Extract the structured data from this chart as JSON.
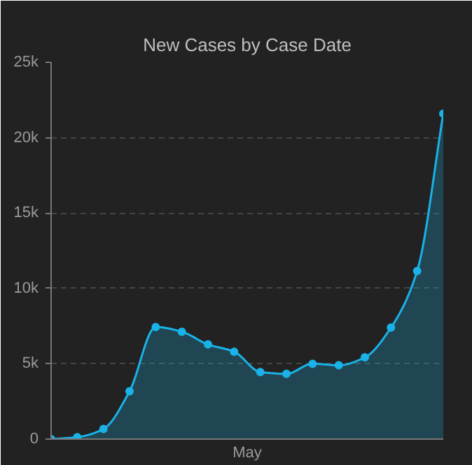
{
  "chart_data": {
    "type": "area",
    "title": "New Cases by Case Date",
    "xlabel": "May",
    "categories": [
      null,
      null,
      null,
      null,
      null,
      null,
      null,
      null,
      null,
      null,
      null,
      null,
      null,
      null,
      null,
      null
    ],
    "series": [
      {
        "color": "#1ab2e8",
        "values": [
          0,
          130,
          670,
          3170,
          7440,
          7120,
          6280,
          5800,
          4450,
          4330,
          5000,
          4900,
          5420,
          7400,
          11150,
          21600
        ]
      }
    ],
    "ylim": [
      0,
      25000
    ],
    "yticks": [
      {
        "value": 0,
        "label": "0"
      },
      {
        "value": 5000,
        "label": "5k"
      },
      {
        "value": 10000,
        "label": "10k"
      },
      {
        "value": 15000,
        "label": "15k"
      },
      {
        "value": 20000,
        "label": "20k"
      },
      {
        "value": 25000,
        "label": "25k"
      }
    ],
    "grid": "y",
    "marker": "circle",
    "line_style": "solid"
  }
}
